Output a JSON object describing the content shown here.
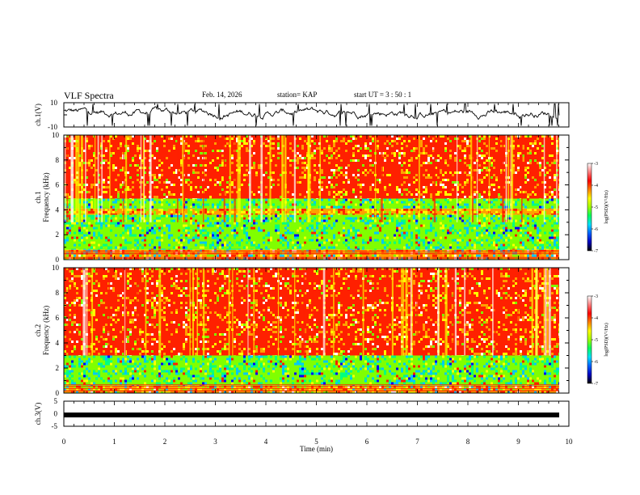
{
  "header": {
    "title": "VLF Spectra",
    "date": "Feb. 14, 2026",
    "station": "station= KAP",
    "start_ut": "start  UT  =   3  : 50 : 1"
  },
  "chart_data": [
    {
      "type": "line",
      "panel": "ch1-waveform",
      "ylabel": "ch.1(V)",
      "ytick_labels": [
        "10",
        "-10"
      ],
      "ylim": [
        -10,
        10
      ],
      "xlim": [
        0,
        9.85
      ]
    },
    {
      "type": "heatmap",
      "panel": "ch1-spectrogram",
      "ylabel_line1": "ch.1",
      "ylabel_line2": "Frequency (kHz)",
      "ytick_labels": [
        "0",
        "2",
        "4",
        "6",
        "8",
        "10"
      ],
      "ylim": [
        0,
        10
      ],
      "xlim": [
        0,
        9.85
      ],
      "bands_khz": [
        {
          "from": 0.0,
          "to": 0.8,
          "level": "mixed"
        },
        {
          "from": 0.8,
          "to": 3.6,
          "level": "low"
        },
        {
          "from": 3.6,
          "to": 4.1,
          "level": "mid"
        },
        {
          "from": 4.1,
          "to": 4.9,
          "level": "low"
        },
        {
          "from": 4.9,
          "to": 10.0,
          "level": "high"
        }
      ],
      "colorbar": {
        "label": "log(PSD)(V²/Hz)",
        "tick_labels": [
          "-3",
          "-4",
          "-5",
          "-6",
          "-7"
        ],
        "range": [
          -7,
          -3
        ]
      }
    },
    {
      "type": "heatmap",
      "panel": "ch2-spectrogram",
      "ylabel_line1": "ch.2",
      "ylabel_line2": "Frequency (kHz)",
      "ytick_labels": [
        "0",
        "2",
        "4",
        "6",
        "8",
        "10"
      ],
      "ylim": [
        0,
        10
      ],
      "xlim": [
        0,
        9.85
      ],
      "bands_khz": [
        {
          "from": 0.0,
          "to": 0.6,
          "level": "mixed"
        },
        {
          "from": 0.6,
          "to": 3.0,
          "level": "low"
        },
        {
          "from": 3.0,
          "to": 10.0,
          "level": "high"
        }
      ],
      "colorbar": {
        "label": "log(PSD)(V²/Hz)",
        "tick_labels": [
          "-3",
          "-4",
          "-5",
          "-6",
          "-7"
        ],
        "range": [
          -7,
          -3
        ]
      }
    },
    {
      "type": "line",
      "panel": "ch3-waveform",
      "ylabel": "ch.3(V)",
      "ytick_labels": [
        "5",
        "0",
        "-5"
      ],
      "ylim": [
        -5,
        5
      ],
      "constant_value": -0.5,
      "xlim": [
        0,
        9.85
      ]
    }
  ],
  "xaxis": {
    "label": "Time (min)",
    "ticks": [
      0,
      1,
      2,
      3,
      4,
      5,
      6,
      7,
      8,
      9,
      10
    ],
    "tick_labels": [
      "0",
      "1",
      "2",
      "3",
      "4",
      "5",
      "6",
      "7",
      "8",
      "9",
      "10"
    ],
    "range": [
      0,
      10
    ]
  },
  "colors": {
    "scale": [
      "#000080",
      "#0000ff",
      "#00c8ff",
      "#00ff80",
      "#80ff00",
      "#ffff00",
      "#ffa000",
      "#ff2000",
      "#ffffff"
    ]
  }
}
